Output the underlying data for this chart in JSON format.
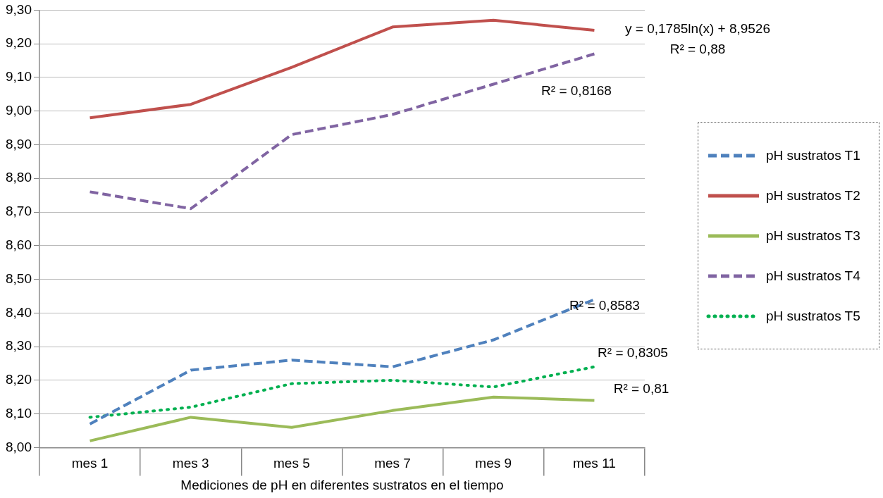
{
  "chart_data": {
    "type": "line",
    "xlabel": "Mediciones de pH en diferentes sustratos en el tiempo",
    "categories": [
      "mes 1",
      "mes 3",
      "mes 5",
      "mes 7",
      "mes 9",
      "mes 11"
    ],
    "series": [
      {
        "name": "pH sustratos T1",
        "color": "#4f81bd",
        "line_style": "dashed",
        "values": [
          8.07,
          8.23,
          8.26,
          8.24,
          8.32,
          8.44
        ]
      },
      {
        "name": "pH sustratos T2",
        "color": "#c0504d",
        "line_style": "solid",
        "values": [
          8.98,
          9.02,
          9.13,
          9.25,
          9.27,
          9.24
        ]
      },
      {
        "name": "pH sustratos T3",
        "color": "#9bbb59",
        "line_style": "solid",
        "values": [
          8.02,
          8.09,
          8.06,
          8.11,
          8.15,
          8.14
        ]
      },
      {
        "name": "pH sustratos T4",
        "color": "#8064a2",
        "line_style": "dashed",
        "values": [
          8.76,
          8.71,
          8.93,
          8.99,
          9.08,
          9.17
        ]
      },
      {
        "name": "pH sustratos T5",
        "color": "#00b050",
        "line_style": "dotted",
        "values": [
          8.09,
          8.12,
          8.19,
          8.2,
          8.18,
          8.24
        ]
      }
    ],
    "ylim": [
      8.0,
      9.3
    ],
    "yticks": [
      {
        "value": 8.0,
        "label": "8,00"
      },
      {
        "value": 8.1,
        "label": "8,10"
      },
      {
        "value": 8.2,
        "label": "8,20"
      },
      {
        "value": 8.3,
        "label": "8,30"
      },
      {
        "value": 8.4,
        "label": "8,40"
      },
      {
        "value": 8.5,
        "label": "8,50"
      },
      {
        "value": 8.6,
        "label": "8,60"
      },
      {
        "value": 8.7,
        "label": "8,70"
      },
      {
        "value": 8.8,
        "label": "8,80"
      },
      {
        "value": 8.9,
        "label": "8,90"
      },
      {
        "value": 9.0,
        "label": "9,00"
      },
      {
        "value": 9.1,
        "label": "9,10"
      },
      {
        "value": 9.2,
        "label": "9,20"
      },
      {
        "value": 9.3,
        "label": "9,30"
      }
    ],
    "grid": "y",
    "legend": "right",
    "marker": "none",
    "annotations": [
      "y = 0,1785ln(x) + 8,9526",
      "R² = 0,88",
      "R² = 0,8168",
      "R² = 0,8583",
      "R² = 0,8305",
      "R² = 0,81"
    ]
  }
}
